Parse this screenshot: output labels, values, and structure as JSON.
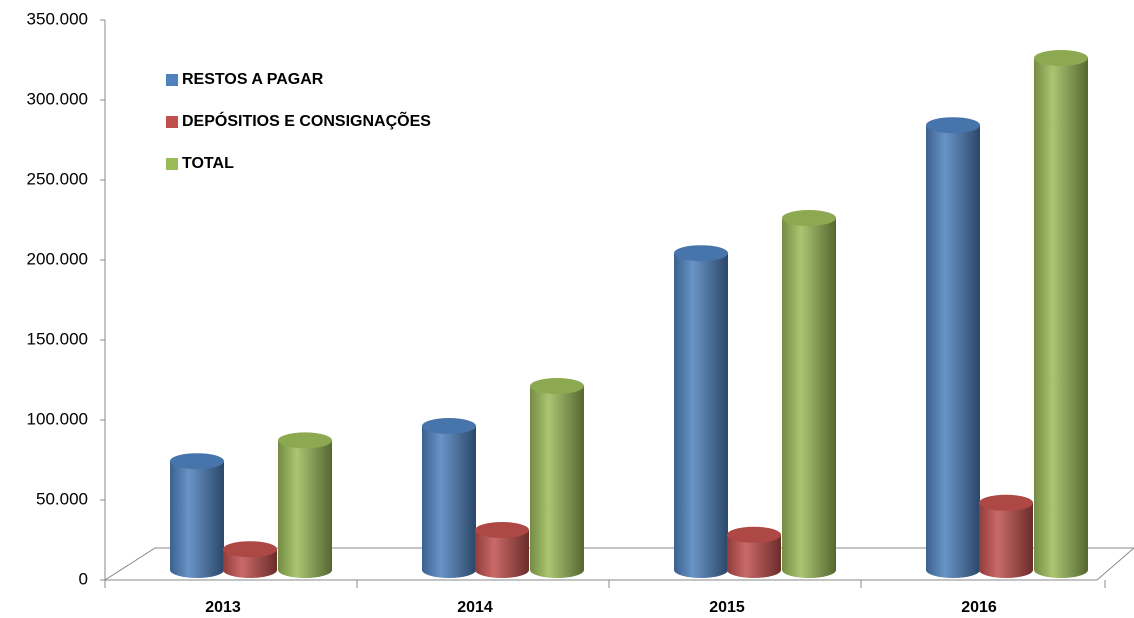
{
  "chart_data": {
    "type": "bar",
    "categories": [
      "2013",
      "2014",
      "2015",
      "2016"
    ],
    "series": [
      {
        "name": "RESTOS A PAGAR",
        "color": "#4f81bd",
        "values": [
          68000,
          90000,
          198000,
          278000
        ]
      },
      {
        "name": "DEPÓSITIOS E CONSIGNAÇÕES",
        "color": "#c0504d",
        "values": [
          13000,
          25000,
          22000,
          42000
        ]
      },
      {
        "name": "TOTAL",
        "color": "#9bbb59",
        "values": [
          81000,
          115000,
          220000,
          320000
        ]
      }
    ],
    "ylim": [
      0,
      350000
    ],
    "yticks": [
      0,
      {
        "value": 50000,
        "label": "50.000"
      },
      {
        "value": 100000,
        "label": "100.000"
      },
      {
        "value": 150000,
        "label": "150.000"
      },
      {
        "value": 200000,
        "label": "200.000"
      },
      {
        "value": 250000,
        "label": "250.000"
      },
      {
        "value": 300000,
        "label": "300.000"
      },
      {
        "value": 350000,
        "label": "350.000"
      }
    ],
    "grid": false,
    "legend": "top-left"
  }
}
